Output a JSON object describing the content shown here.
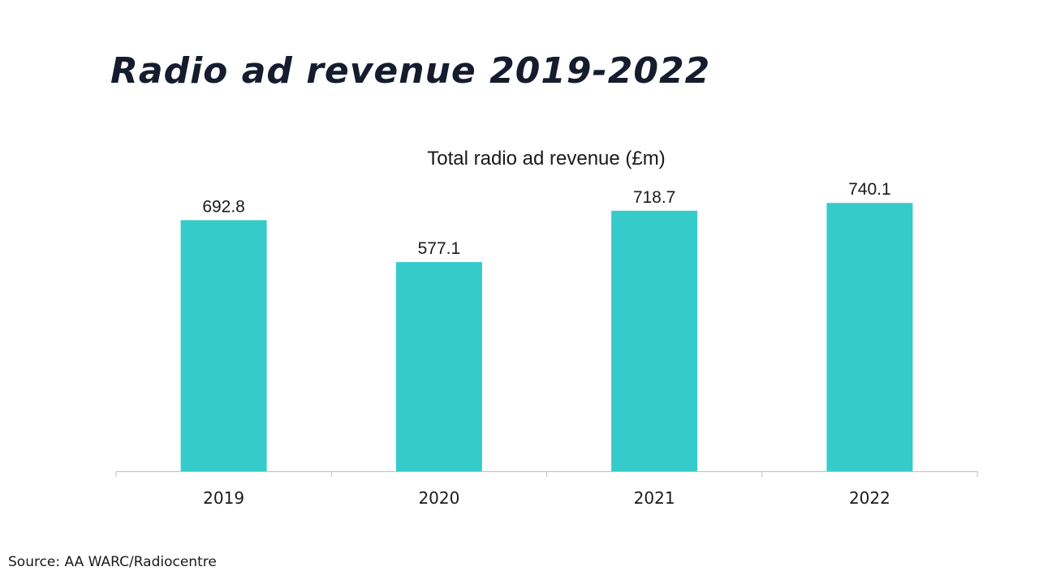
{
  "headline": "Radio ad revenue 2019-2022",
  "source": "Source: AA WARC/Radiocentre",
  "colors": {
    "bar": "#36cbcb",
    "axis": "#bfbfbf",
    "text": "#1a1a1a",
    "headline": "#151c2e"
  },
  "chart_data": {
    "type": "bar",
    "title": "Total radio ad revenue (£m)",
    "categories": [
      "2019",
      "2020",
      "2021",
      "2022"
    ],
    "values": [
      692.8,
      577.1,
      718.7,
      740.1
    ],
    "value_labels": [
      "692.8",
      "577.1",
      "718.7",
      "740.1"
    ],
    "xlabel": "",
    "ylabel": "",
    "ylim": [
      0,
      800
    ],
    "grid": false,
    "legend": "none"
  }
}
